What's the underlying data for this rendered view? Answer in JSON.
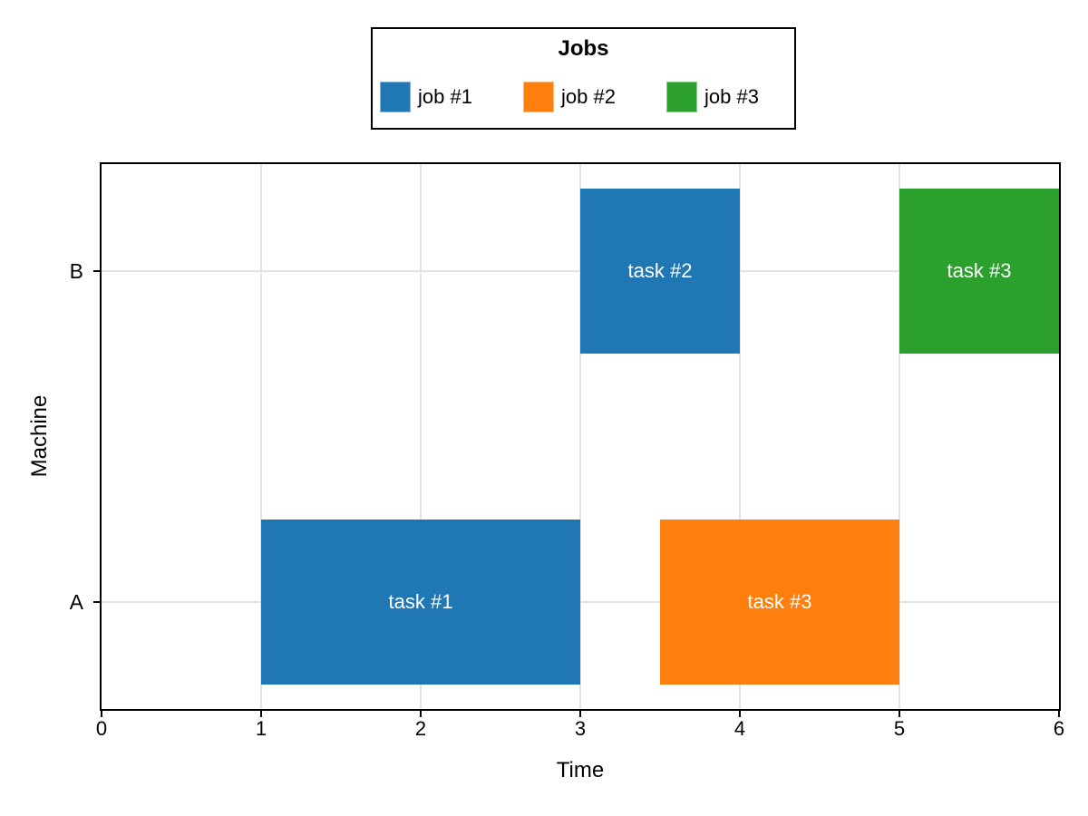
{
  "figure": {
    "legend": {
      "title": "Jobs"
    },
    "xlabel": "Time",
    "ylabel": "Machine"
  },
  "chart_data": {
    "type": "bar",
    "subtype": "gantt",
    "title": "Jobs",
    "xlabel": "Time",
    "ylabel": "Machine",
    "xlim": [
      0,
      6
    ],
    "x_ticks": [
      0,
      1,
      2,
      3,
      4,
      5,
      6
    ],
    "machines_bottom_to_top": [
      "A",
      "B"
    ],
    "grid": true,
    "legend_position": "top-center",
    "jobs": [
      {
        "name": "job #1",
        "color": "#1f77b4"
      },
      {
        "name": "job #2",
        "color": "#ff7f0e"
      },
      {
        "name": "job #3",
        "color": "#2ca02c"
      }
    ],
    "tasks": [
      {
        "label": "task #1",
        "machine": "A",
        "job": "job #1",
        "start": 1,
        "end": 3
      },
      {
        "label": "task #3",
        "machine": "A",
        "job": "job #2",
        "start": 3.5,
        "end": 5
      },
      {
        "label": "task #2",
        "machine": "B",
        "job": "job #1",
        "start": 3,
        "end": 4
      },
      {
        "label": "task #3",
        "machine": "B",
        "job": "job #3",
        "start": 5,
        "end": 6
      }
    ]
  }
}
